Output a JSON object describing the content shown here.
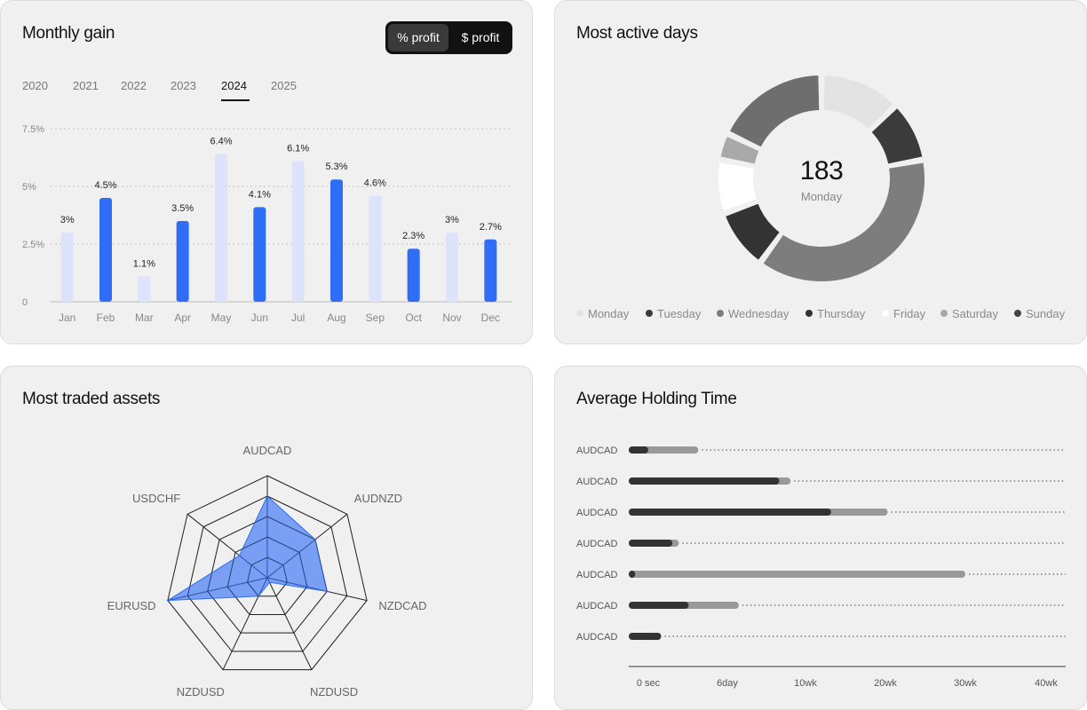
{
  "monthly": {
    "title": "Monthly gain",
    "toggle": {
      "percent_label": "% profit",
      "dollar_label": "$ profit"
    },
    "years": [
      "2020",
      "2021",
      "2022",
      "2023",
      "2024",
      "2025"
    ],
    "active_year": "2024"
  },
  "days": {
    "title": "Most active days",
    "center_value": "183",
    "center_label": "Monday"
  },
  "assets": {
    "title": "Most traded assets"
  },
  "holding": {
    "title": "Average Holding Time"
  },
  "chart_data": [
    {
      "type": "bar",
      "id": "monthly-gain",
      "categories": [
        "Jan",
        "Feb",
        "Mar",
        "Apr",
        "May",
        "Jun",
        "Jul",
        "Aug",
        "Sep",
        "Oct",
        "Nov",
        "Dec"
      ],
      "values": [
        3,
        4.5,
        1.1,
        3.5,
        6.4,
        4.1,
        6.1,
        5.3,
        4.6,
        2.3,
        3,
        2.7
      ],
      "labels": [
        "3%",
        "4.5%",
        "1.1%",
        "3.5%",
        "6.4%",
        "4.1%",
        "6.1%",
        "5.3%",
        "4.6%",
        "2.3%",
        "3%",
        "2.7%"
      ],
      "highlighted": [
        false,
        true,
        false,
        true,
        false,
        true,
        false,
        true,
        false,
        true,
        false,
        true
      ],
      "colors": {
        "highlight": "#2f6df6",
        "muted": "#dde3fb"
      },
      "yticks": [
        0,
        2.5,
        5,
        7.5
      ],
      "ytick_labels": [
        "0",
        "2.5%",
        "5%",
        "7.5%"
      ],
      "ylim": [
        0,
        7.5
      ],
      "grid": true
    },
    {
      "type": "pie",
      "id": "most-active-days",
      "categories": [
        "Monday",
        "Tuesday",
        "Wednesday",
        "Thursday",
        "Friday",
        "Saturday",
        "Sunday"
      ],
      "values": [
        12,
        9,
        36,
        9,
        8,
        4,
        17
      ],
      "colors": [
        "#e3e3e3",
        "#3b3b3b",
        "#7d7d7d",
        "#333333",
        "#ffffff",
        "#a9a9a9",
        "#6e6e6e"
      ],
      "legend_colors": [
        "#e3e3e3",
        "#3b3b3b",
        "#7d7d7d",
        "#333333",
        "#ffffff",
        "#a9a9a9",
        "#444444"
      ],
      "legend_position": "bottom"
    },
    {
      "type": "radar",
      "id": "most-traded-assets",
      "categories": [
        "AUDCAD",
        "AUDNZD",
        "NZDCAD",
        "NZDUSD",
        "NZDUSD",
        "EURUSD",
        "USDCHF"
      ],
      "values": [
        0.8,
        0.6,
        0.6,
        0.05,
        0.2,
        1.0,
        0.35
      ],
      "max": 1.0,
      "rings": 5,
      "color": "#2f6df6"
    },
    {
      "type": "bar",
      "id": "average-holding-time",
      "orientation": "horizontal",
      "categories": [
        "AUDCAD",
        "AUDCAD",
        "AUDCAD",
        "AUDCAD",
        "AUDCAD",
        "AUDCAD",
        "AUDCAD"
      ],
      "series": [
        {
          "values": [
            1.2,
            9.3,
            12.5,
            2.7,
            0.4,
            3.7,
            2.0
          ]
        },
        {
          "values": [
            4.3,
            10.0,
            16.0,
            3.1,
            20.8,
            6.8,
            2.0
          ]
        }
      ],
      "colors": [
        "#333333",
        "#999999"
      ],
      "xticks": [
        "0 sec",
        "6day",
        "10wk",
        "20wk",
        "30wk",
        "40wk"
      ],
      "xlim": [
        0,
        27
      ]
    }
  ]
}
